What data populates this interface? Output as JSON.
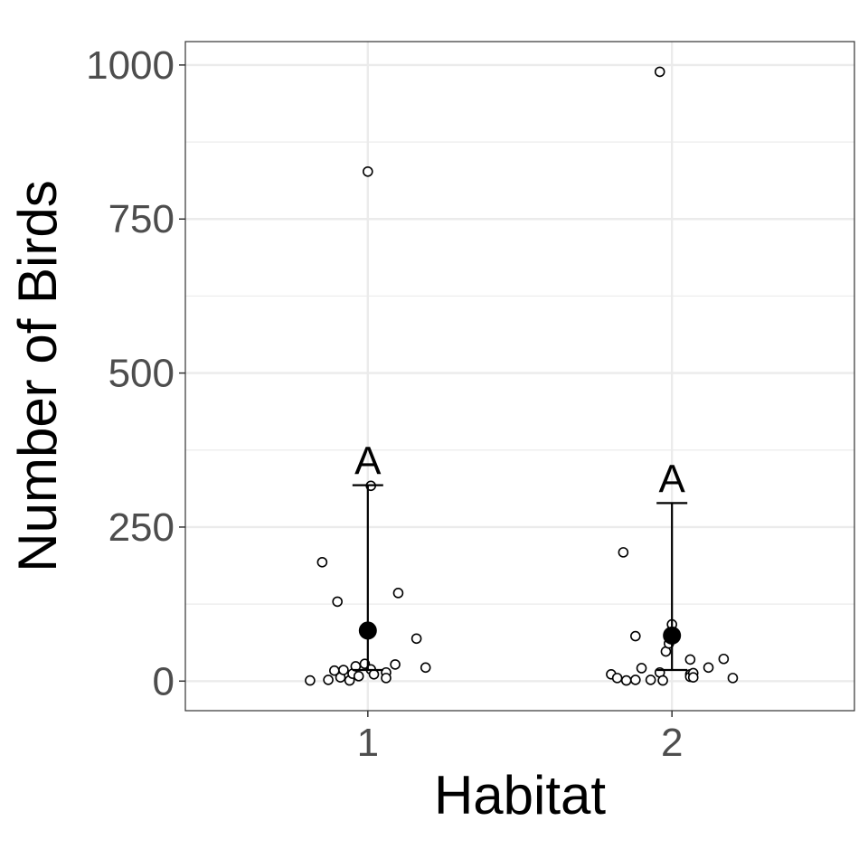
{
  "chart_data": {
    "type": "scatter",
    "xlabel": "Habitat",
    "ylabel": "Number of Birds",
    "categories": [
      "1",
      "2"
    ],
    "xlim": [
      0.4,
      2.6
    ],
    "ylim": [
      -48,
      1038
    ],
    "yticks": [
      0,
      250,
      500,
      750,
      1000
    ],
    "yticks_minor": [
      125,
      375,
      625,
      875
    ],
    "grid": true,
    "legend": "none",
    "colors": {
      "points": "#000000",
      "grid": "#ebebeb",
      "panel_border": "#333333",
      "tick_text": "#4d4d4d"
    },
    "points": [
      {
        "x": 0.81,
        "y": 1
      },
      {
        "x": 0.85,
        "y": 193
      },
      {
        "x": 0.87,
        "y": 2
      },
      {
        "x": 0.89,
        "y": 17
      },
      {
        "x": 0.9,
        "y": 129
      },
      {
        "x": 0.91,
        "y": 6
      },
      {
        "x": 0.92,
        "y": 18
      },
      {
        "x": 0.94,
        "y": 1
      },
      {
        "x": 0.95,
        "y": 12
      },
      {
        "x": 0.96,
        "y": 24
      },
      {
        "x": 0.97,
        "y": 8
      },
      {
        "x": 0.99,
        "y": 28
      },
      {
        "x": 1.0,
        "y": 827
      },
      {
        "x": 1.01,
        "y": 317
      },
      {
        "x": 1.01,
        "y": 19
      },
      {
        "x": 1.02,
        "y": 11
      },
      {
        "x": 1.06,
        "y": 14
      },
      {
        "x": 1.06,
        "y": 5
      },
      {
        "x": 1.09,
        "y": 27
      },
      {
        "x": 1.1,
        "y": 143
      },
      {
        "x": 1.16,
        "y": 69
      },
      {
        "x": 1.19,
        "y": 22
      },
      {
        "x": 1.8,
        "y": 11
      },
      {
        "x": 1.82,
        "y": 5
      },
      {
        "x": 1.84,
        "y": 209
      },
      {
        "x": 1.85,
        "y": 1
      },
      {
        "x": 1.88,
        "y": 2
      },
      {
        "x": 1.88,
        "y": 73
      },
      {
        "x": 1.9,
        "y": 21
      },
      {
        "x": 1.93,
        "y": 2
      },
      {
        "x": 1.96,
        "y": 14
      },
      {
        "x": 1.96,
        "y": 989
      },
      {
        "x": 1.97,
        "y": 1
      },
      {
        "x": 1.98,
        "y": 48
      },
      {
        "x": 1.99,
        "y": 61
      },
      {
        "x": 2.0,
        "y": 92
      },
      {
        "x": 2.06,
        "y": 35
      },
      {
        "x": 2.06,
        "y": 11
      },
      {
        "x": 2.06,
        "y": 7
      },
      {
        "x": 2.07,
        "y": 13
      },
      {
        "x": 2.07,
        "y": 6
      },
      {
        "x": 2.12,
        "y": 22
      },
      {
        "x": 2.17,
        "y": 36
      },
      {
        "x": 2.2,
        "y": 5
      }
    ],
    "summary": [
      {
        "x": 1,
        "mean": 82,
        "lower": 18,
        "upper": 318,
        "label": "A"
      },
      {
        "x": 2,
        "mean": 74,
        "lower": 18,
        "upper": 289,
        "label": "A"
      }
    ]
  }
}
